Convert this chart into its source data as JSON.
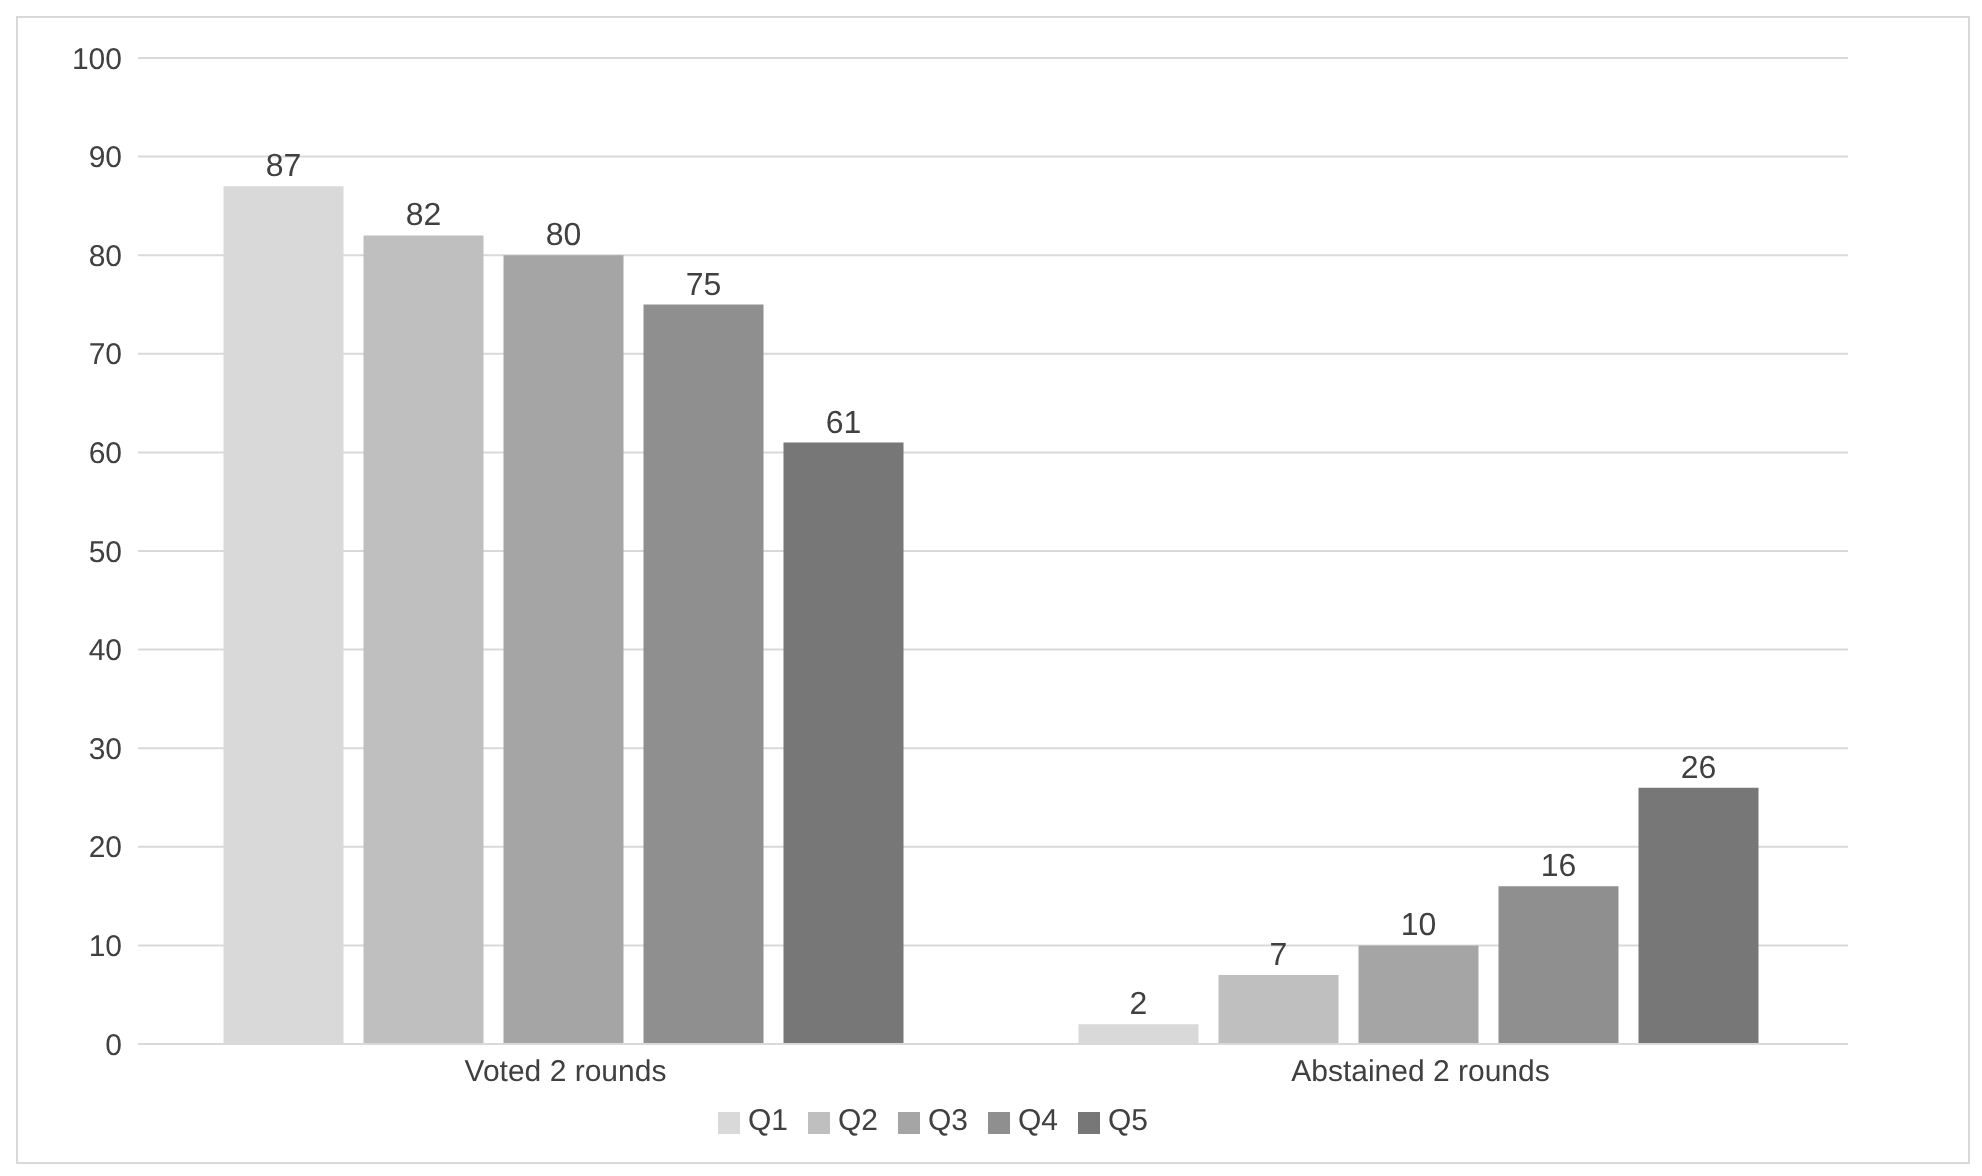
{
  "chart_data": {
    "type": "bar",
    "categories": [
      "Voted 2 rounds",
      "Abstained 2 rounds"
    ],
    "series": [
      {
        "name": "Q1",
        "color": "#d9d9d9",
        "values": [
          87,
          2
        ]
      },
      {
        "name": "Q2",
        "color": "#bfbfbf",
        "values": [
          82,
          7
        ]
      },
      {
        "name": "Q3",
        "color": "#a5a5a5",
        "values": [
          80,
          10
        ]
      },
      {
        "name": "Q4",
        "color": "#8f8f8f",
        "values": [
          75,
          16
        ]
      },
      {
        "name": "Q5",
        "color": "#777777",
        "values": [
          61,
          26
        ]
      }
    ],
    "ylim": [
      0,
      100
    ],
    "yticks": [
      0,
      10,
      20,
      30,
      40,
      50,
      60,
      70,
      80,
      90,
      100
    ],
    "grid": "y",
    "data_labels": true,
    "legend": "bottom"
  }
}
